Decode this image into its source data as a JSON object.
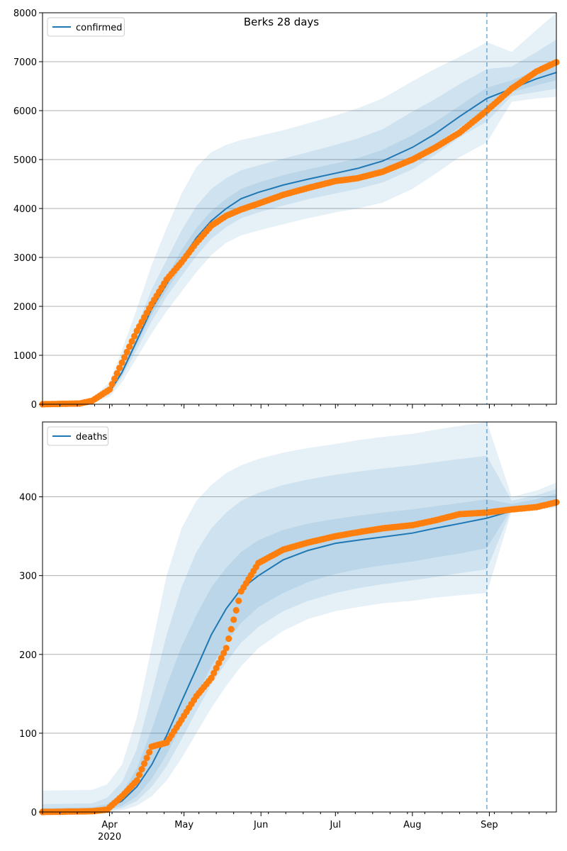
{
  "title": "Berks 28 days",
  "chart_data": [
    {
      "type": "line",
      "title": "Berks 28 days",
      "legend": {
        "entries": [
          "confirmed"
        ],
        "placement": "top-left"
      },
      "grid": "horizontal",
      "xlim": [
        "2020-03-05",
        "2020-09-28"
      ],
      "ylim": [
        0,
        8000
      ],
      "yticks": [
        0,
        1000,
        2000,
        3000,
        4000,
        5000,
        6000,
        7000,
        8000
      ],
      "cutoff_date": "2020-08-31",
      "series": [
        {
          "name": "confirmed",
          "kind": "model",
          "x": [
            "2020-03-05",
            "2020-03-20",
            "2020-03-25",
            "2020-04-01",
            "2020-04-06",
            "2020-04-12",
            "2020-04-18",
            "2020-04-24",
            "2020-04-30",
            "2020-05-06",
            "2020-05-12",
            "2020-05-18",
            "2020-05-24",
            "2020-05-31",
            "2020-06-10",
            "2020-06-20",
            "2020-07-01",
            "2020-07-10",
            "2020-07-20",
            "2020-08-01",
            "2020-08-10",
            "2020-08-20",
            "2020-08-31",
            "2020-09-10",
            "2020-09-20",
            "2020-09-28"
          ],
          "values": [
            0,
            10,
            60,
            250,
            650,
            1300,
            1950,
            2450,
            2950,
            3400,
            3750,
            4000,
            4200,
            4330,
            4480,
            4600,
            4720,
            4820,
            4970,
            5250,
            5520,
            5880,
            6250,
            6450,
            6650,
            6780
          ]
        },
        {
          "name": "observed",
          "kind": "points",
          "x": [
            "2020-03-05",
            "2020-03-20",
            "2020-03-25",
            "2020-04-01",
            "2020-04-06",
            "2020-04-12",
            "2020-04-18",
            "2020-04-24",
            "2020-04-30",
            "2020-05-06",
            "2020-05-12",
            "2020-05-18",
            "2020-05-24",
            "2020-05-31",
            "2020-06-10",
            "2020-06-20",
            "2020-07-01",
            "2020-07-10",
            "2020-07-20",
            "2020-08-01",
            "2020-08-10",
            "2020-08-20",
            "2020-08-31",
            "2020-09-10",
            "2020-09-20",
            "2020-09-28"
          ],
          "values": [
            0,
            15,
            70,
            300,
            850,
            1500,
            2050,
            2550,
            2900,
            3300,
            3650,
            3850,
            3980,
            4100,
            4280,
            4420,
            4560,
            4620,
            4750,
            5000,
            5240,
            5550,
            6000,
            6450,
            6800,
            6990
          ]
        }
      ],
      "bands": {
        "x": [
          "2020-03-05",
          "2020-03-20",
          "2020-03-25",
          "2020-04-01",
          "2020-04-06",
          "2020-04-12",
          "2020-04-18",
          "2020-04-24",
          "2020-04-30",
          "2020-05-06",
          "2020-05-12",
          "2020-05-18",
          "2020-05-24",
          "2020-05-31",
          "2020-06-10",
          "2020-06-20",
          "2020-07-01",
          "2020-07-10",
          "2020-07-20",
          "2020-08-01",
          "2020-08-10",
          "2020-08-20",
          "2020-08-31",
          "2020-09-10",
          "2020-09-20",
          "2020-09-28"
        ],
        "outer_low": [
          0,
          5,
          30,
          150,
          450,
          950,
          1450,
          1900,
          2300,
          2700,
          3050,
          3300,
          3450,
          3550,
          3680,
          3800,
          3920,
          4000,
          4120,
          4400,
          4700,
          5050,
          5350,
          6180,
          6250,
          6280
        ],
        "outer_high": [
          0,
          15,
          120,
          450,
          1100,
          1950,
          2850,
          3600,
          4300,
          4850,
          5150,
          5300,
          5400,
          5480,
          5600,
          5740,
          5900,
          6050,
          6250,
          6600,
          6850,
          7100,
          7400,
          7200,
          7650,
          8000
        ],
        "mid_low": [
          0,
          7,
          45,
          200,
          550,
          1120,
          1700,
          2200,
          2620,
          3030,
          3380,
          3620,
          3800,
          3920,
          4060,
          4190,
          4310,
          4400,
          4530,
          4800,
          5090,
          5450,
          5780,
          6300,
          6380,
          6450
        ],
        "mid_high": [
          0,
          12,
          90,
          350,
          850,
          1600,
          2350,
          2950,
          3550,
          4050,
          4400,
          4620,
          4780,
          4880,
          5020,
          5150,
          5300,
          5430,
          5620,
          5980,
          6230,
          6540,
          6850,
          6900,
          7200,
          7450
        ],
        "inner_low": [
          0,
          8,
          52,
          225,
          600,
          1220,
          1830,
          2330,
          2790,
          3220,
          3560,
          3800,
          3990,
          4130,
          4280,
          4400,
          4520,
          4610,
          4750,
          5020,
          5300,
          5660,
          6010,
          6380,
          6520,
          6620
        ],
        "inner_high": [
          0,
          11,
          70,
          290,
          720,
          1400,
          2080,
          2600,
          3150,
          3600,
          3950,
          4200,
          4400,
          4530,
          4680,
          4800,
          4920,
          5030,
          5200,
          5500,
          5760,
          6100,
          6470,
          6620,
          6820,
          6980
        ]
      }
    },
    {
      "type": "line",
      "title": "",
      "legend": {
        "entries": [
          "deaths"
        ],
        "placement": "top-left"
      },
      "grid": "horizontal",
      "xlim": [
        "2020-03-05",
        "2020-09-28"
      ],
      "ylim": [
        0,
        495
      ],
      "yticks": [
        0,
        100,
        200,
        300,
        400
      ],
      "cutoff_date": "2020-08-31",
      "series": [
        {
          "name": "deaths",
          "kind": "model",
          "x": [
            "2020-03-05",
            "2020-03-25",
            "2020-03-31",
            "2020-04-06",
            "2020-04-12",
            "2020-04-18",
            "2020-04-24",
            "2020-04-30",
            "2020-05-06",
            "2020-05-12",
            "2020-05-18",
            "2020-05-24",
            "2020-05-31",
            "2020-06-10",
            "2020-06-20",
            "2020-07-01",
            "2020-07-10",
            "2020-07-20",
            "2020-08-01",
            "2020-08-10",
            "2020-08-20",
            "2020-08-31",
            "2020-09-10",
            "2020-09-20",
            "2020-09-28"
          ],
          "values": [
            0,
            1,
            4,
            14,
            32,
            60,
            97,
            140,
            182,
            225,
            258,
            283,
            300,
            320,
            332,
            341,
            345,
            349,
            354,
            360,
            366,
            373,
            382,
            388,
            395
          ]
        },
        {
          "name": "observed",
          "kind": "points",
          "x": [
            "2020-03-05",
            "2020-03-25",
            "2020-03-31",
            "2020-04-06",
            "2020-04-12",
            "2020-04-18",
            "2020-04-24",
            "2020-04-30",
            "2020-05-06",
            "2020-05-12",
            "2020-05-18",
            "2020-05-24",
            "2020-05-31",
            "2020-06-10",
            "2020-06-20",
            "2020-07-01",
            "2020-07-10",
            "2020-07-20",
            "2020-08-01",
            "2020-08-10",
            "2020-08-20",
            "2020-08-31",
            "2020-09-10",
            "2020-09-20",
            "2020-09-28"
          ],
          "values": [
            0,
            1,
            3,
            20,
            40,
            83,
            88,
            117,
            147,
            170,
            208,
            280,
            316,
            333,
            342,
            350,
            355,
            360,
            364,
            370,
            378,
            380,
            384,
            387,
            393
          ]
        }
      ],
      "bands": {
        "x": [
          "2020-03-05",
          "2020-03-25",
          "2020-03-31",
          "2020-04-06",
          "2020-04-12",
          "2020-04-18",
          "2020-04-24",
          "2020-04-30",
          "2020-05-06",
          "2020-05-12",
          "2020-05-18",
          "2020-05-24",
          "2020-05-31",
          "2020-06-10",
          "2020-06-20",
          "2020-07-01",
          "2020-07-10",
          "2020-07-20",
          "2020-08-01",
          "2020-08-10",
          "2020-08-20",
          "2020-08-31",
          "2020-09-10",
          "2020-09-20",
          "2020-09-28"
        ],
        "outer_low": [
          0,
          0,
          0,
          2,
          8,
          20,
          40,
          68,
          100,
          132,
          160,
          185,
          208,
          230,
          245,
          255,
          260,
          265,
          268,
          272,
          275,
          278,
          382,
          384,
          386
        ],
        "outer_high": [
          27,
          28,
          35,
          60,
          120,
          210,
          300,
          360,
          395,
          415,
          430,
          440,
          448,
          456,
          462,
          467,
          472,
          476,
          480,
          485,
          490,
          495,
          400,
          408,
          418
        ],
        "mid_low": [
          0,
          0,
          1,
          5,
          14,
          32,
          58,
          92,
          128,
          162,
          190,
          215,
          235,
          255,
          268,
          278,
          284,
          289,
          294,
          298,
          303,
          308,
          385,
          386,
          388
        ],
        "mid_high": [
          10,
          11,
          18,
          38,
          80,
          150,
          225,
          285,
          330,
          360,
          380,
          395,
          405,
          415,
          422,
          428,
          432,
          436,
          440,
          444,
          448,
          452,
          395,
          402,
          410
        ],
        "inner_low": [
          0,
          1,
          2,
          8,
          20,
          42,
          73,
          110,
          148,
          185,
          215,
          240,
          260,
          278,
          292,
          302,
          308,
          313,
          318,
          323,
          328,
          335,
          386,
          388,
          390
        ],
        "inner_high": [
          5,
          6,
          10,
          24,
          55,
          105,
          160,
          210,
          250,
          285,
          310,
          330,
          345,
          358,
          366,
          372,
          376,
          380,
          384,
          388,
          392,
          397,
          391,
          397,
          404
        ]
      }
    }
  ],
  "xaxis": {
    "month_ticks": [
      {
        "date": "2020-04-01",
        "label": "Apr",
        "sublabel": "2020"
      },
      {
        "date": "2020-05-01",
        "label": "May",
        "sublabel": ""
      },
      {
        "date": "2020-06-01",
        "label": "Jun",
        "sublabel": ""
      },
      {
        "date": "2020-07-01",
        "label": "Jul",
        "sublabel": ""
      },
      {
        "date": "2020-08-01",
        "label": "Aug",
        "sublabel": ""
      },
      {
        "date": "2020-09-01",
        "label": "Sep",
        "sublabel": ""
      }
    ]
  },
  "colors": {
    "model_line": "#1f77b4",
    "points": "#ff7f0e",
    "band": "#1f77b4",
    "grid": "#b0b0b0"
  }
}
